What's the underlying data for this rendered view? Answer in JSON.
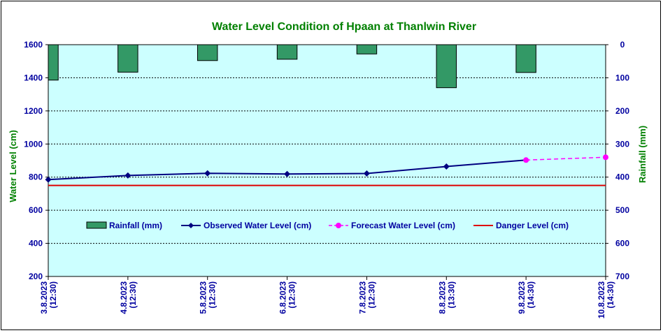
{
  "chart_data": {
    "type": "line",
    "title": "Water Level Condition of Hpaan at Thanlwin River",
    "ylabel": "Water Level (cm)",
    "y2label": "Rainfall (mm)",
    "ylim": [
      200,
      1600
    ],
    "y2lim": [
      0,
      700
    ],
    "y2_inverted": true,
    "yticks": [
      "1600",
      "1400",
      "1200",
      "1000",
      "800",
      "600",
      "400",
      "200"
    ],
    "y2ticks": [
      "0",
      "100",
      "200",
      "300",
      "400",
      "500",
      "600",
      "700"
    ],
    "x": [
      {
        "date": "3.8.2023",
        "time": "(12:30)"
      },
      {
        "date": "4.8.2023",
        "time": "(12:30)"
      },
      {
        "date": "5.8.2023",
        "time": "(12:30)"
      },
      {
        "date": "6.8.2023",
        "time": "(12:30)"
      },
      {
        "date": "7.8.2023",
        "time": "(12:30)"
      },
      {
        "date": "8.8.2023",
        "time": "(13:30)"
      },
      {
        "date": "9.8.2023",
        "time": "(14:30)"
      },
      {
        "date": "10.8.2023",
        "time": "(14:30)"
      }
    ],
    "series": [
      {
        "name": "Rainfall (mm)",
        "type": "bar",
        "axis": "right",
        "color": "#339966",
        "values": [
          107,
          83,
          48,
          44,
          28,
          130,
          84,
          null
        ]
      },
      {
        "name": "Observed Water Level (cm)",
        "type": "line",
        "color": "#000080",
        "values": [
          785,
          810,
          823,
          819,
          822,
          864,
          903,
          null
        ]
      },
      {
        "name": "Forecast Water Level (cm)",
        "type": "line",
        "dashed": true,
        "color": "#ff00ff",
        "values": [
          null,
          null,
          null,
          null,
          null,
          null,
          903,
          920
        ]
      },
      {
        "name": "Danger Level (cm)",
        "type": "line",
        "color": "#dd0000",
        "values": [
          750,
          750,
          750,
          750,
          750,
          750,
          750,
          750
        ]
      }
    ],
    "grid": true,
    "legend": "center",
    "colors": {
      "plot_bg": "#ccffff",
      "title": "#008000",
      "axis_text": "#0000a0",
      "axis_title": "#008000"
    }
  }
}
